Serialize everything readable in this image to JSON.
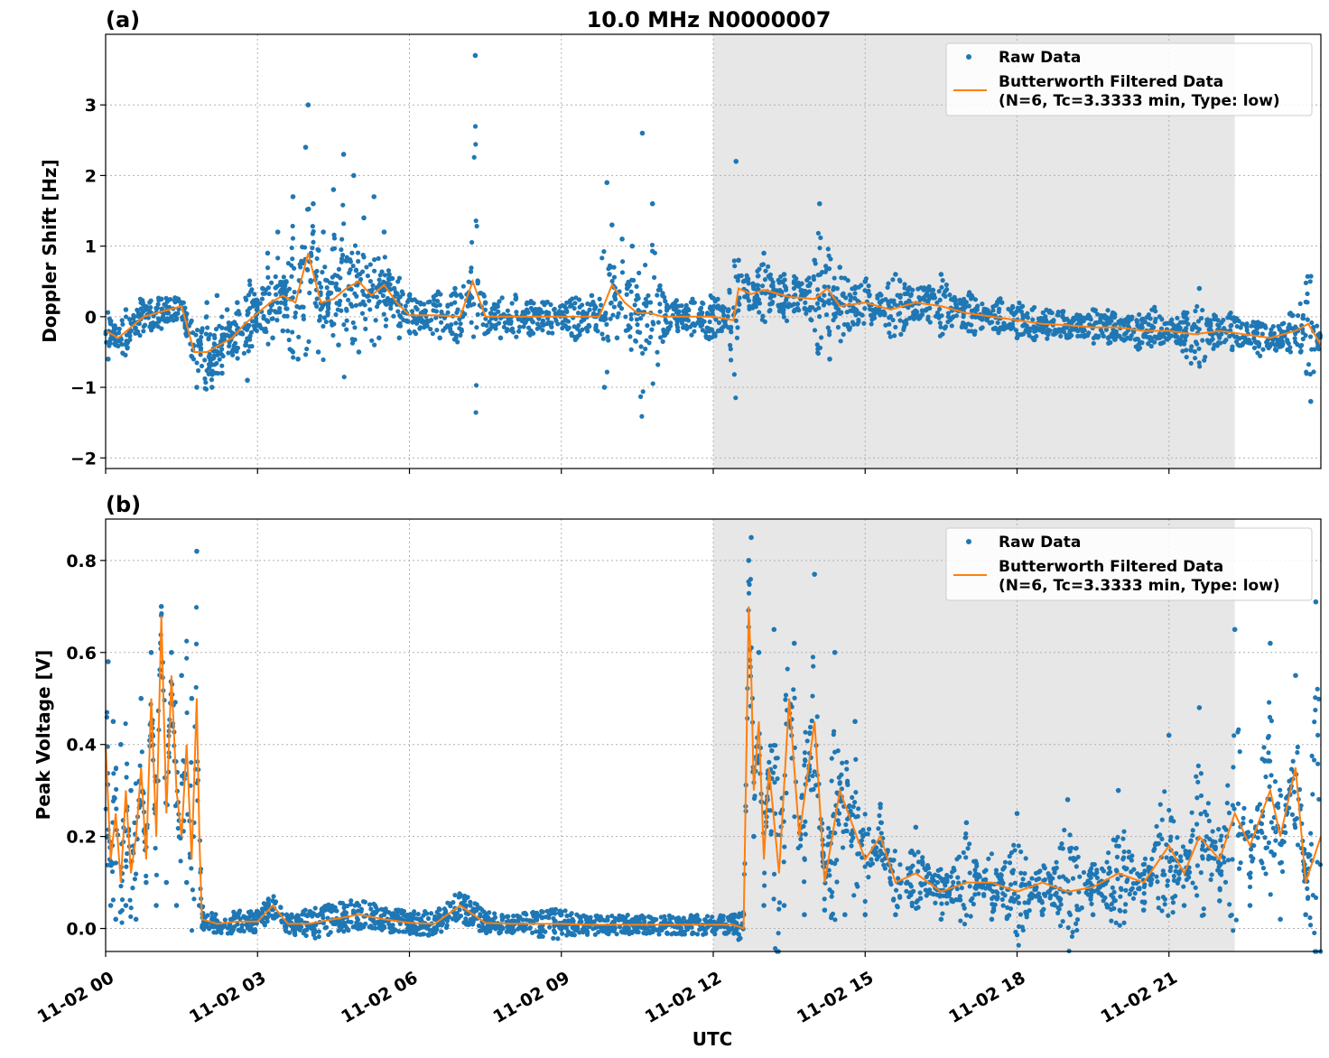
{
  "title": "10.0 MHz N0000007",
  "xlabel": "UTC",
  "colors": {
    "raw": "#1f77b4",
    "filtered": "#ff7f0e",
    "shade": "#e7e7e7",
    "grid": "#b0b0b0"
  },
  "x_ticks": [
    "11-02 00",
    "11-02 03",
    "11-02 06",
    "11-02 09",
    "11-02 12",
    "11-02 15",
    "11-02 18",
    "11-02 21"
  ],
  "x_tick_hours": [
    0,
    3,
    6,
    9,
    12,
    15,
    18,
    21
  ],
  "x_range_hours": [
    0,
    24
  ],
  "shaded_region_hours": [
    12,
    22.3
  ],
  "legend": {
    "raw": "Raw Data",
    "filtered_line1": "Butterworth Filtered Data",
    "filtered_line2": "(N=6, Tc=3.3333 min, Type: low)"
  },
  "chart_data": [
    {
      "panel": "(a)",
      "type": "scatter",
      "ylabel": "Doppler Shift [Hz]",
      "ylim": [
        -2.15,
        4.0
      ],
      "y_ticks": [
        -2,
        -1,
        0,
        1,
        2,
        3
      ],
      "y_tick_labels": [
        "−2",
        "−1",
        "0",
        "1",
        "2",
        "3"
      ],
      "series": [
        {
          "name": "Butterworth Filtered Data",
          "type": "line",
          "x_hours": [
            0,
            0.25,
            0.5,
            0.75,
            1.0,
            1.25,
            1.5,
            1.75,
            2.0,
            2.25,
            2.5,
            2.75,
            3.0,
            3.25,
            3.5,
            3.75,
            4.0,
            4.25,
            4.5,
            4.75,
            5.0,
            5.25,
            5.5,
            5.75,
            6.0,
            6.5,
            7.0,
            7.25,
            7.5,
            8.0,
            8.5,
            9.0,
            9.5,
            9.75,
            10.0,
            10.25,
            10.5,
            10.75,
            11.0,
            11.5,
            12.0,
            12.4,
            12.5,
            12.75,
            13.0,
            13.5,
            14.0,
            14.25,
            14.5,
            15.0,
            15.5,
            16.0,
            16.5,
            17.0,
            17.5,
            18.0,
            18.5,
            19.0,
            19.5,
            20.0,
            20.5,
            21.0,
            21.5,
            22.0,
            22.5,
            23.0,
            23.5,
            23.75,
            24.0
          ],
          "values": [
            -0.2,
            -0.3,
            -0.15,
            0.0,
            0.05,
            0.1,
            0.15,
            -0.5,
            -0.5,
            -0.4,
            -0.3,
            -0.1,
            0.05,
            0.2,
            0.3,
            0.2,
            0.9,
            0.2,
            0.25,
            0.4,
            0.5,
            0.3,
            0.45,
            0.2,
            0.02,
            0.02,
            0.0,
            0.5,
            0.0,
            0.0,
            0.0,
            0.0,
            0.0,
            0.0,
            0.45,
            0.2,
            0.05,
            0.05,
            0.0,
            0.0,
            0.0,
            -0.05,
            0.4,
            0.32,
            0.38,
            0.28,
            0.25,
            0.4,
            0.15,
            0.2,
            0.1,
            0.2,
            0.15,
            0.05,
            0.0,
            -0.05,
            -0.1,
            -0.12,
            -0.15,
            -0.15,
            -0.2,
            -0.2,
            -0.25,
            -0.2,
            -0.25,
            -0.3,
            -0.2,
            -0.1,
            -0.4
          ]
        },
        {
          "name": "Raw Data",
          "type": "scatter",
          "x_hours": [
            0.05,
            0.1,
            0.2,
            0.4,
            0.5,
            0.7,
            0.8,
            0.9,
            1.1,
            1.3,
            1.5,
            1.8,
            1.9,
            2.0,
            2.1,
            2.2,
            2.3,
            2.4,
            2.5,
            2.6,
            2.8,
            3.1,
            3.2,
            3.3,
            3.4,
            3.5,
            3.7,
            3.8,
            3.95,
            4.0,
            4.05,
            4.1,
            4.2,
            4.3,
            4.4,
            4.5,
            4.6,
            4.7,
            4.8,
            4.9,
            5.0,
            5.1,
            5.2,
            5.3,
            5.4,
            5.5,
            5.6,
            5.7,
            5.8,
            6.0,
            6.3,
            6.6,
            6.9,
            7.2,
            7.3,
            7.35,
            7.5,
            7.8,
            8.1,
            8.4,
            8.7,
            9.0,
            9.3,
            9.6,
            9.85,
            9.9,
            9.95,
            10.0,
            10.1,
            10.2,
            10.3,
            10.4,
            10.5,
            10.6,
            10.7,
            10.8,
            11.0,
            11.3,
            11.6,
            11.9,
            12.1,
            12.3,
            12.45,
            12.5,
            12.6,
            12.8,
            13.0,
            13.2,
            13.4,
            13.6,
            13.8,
            14.0,
            14.1,
            14.2,
            14.3,
            14.5,
            14.8,
            15.0,
            15.3,
            15.6,
            15.9,
            16.2,
            16.5,
            16.8,
            17.1,
            17.4,
            17.7,
            18.0,
            18.3,
            18.6,
            18.9,
            19.2,
            19.5,
            19.8,
            20.1,
            20.4,
            20.7,
            21.0,
            21.3,
            21.6,
            21.9,
            22.2,
            22.5,
            22.8,
            23.1,
            23.4,
            23.6,
            23.8,
            23.95
          ],
          "values": [
            -0.6,
            -0.1,
            -0.4,
            0.1,
            -0.2,
            0.2,
            0.1,
            -0.1,
            0.25,
            0.0,
            0.2,
            -1.0,
            -0.2,
            0.2,
            -1.0,
            0.3,
            -0.8,
            0.1,
            -0.5,
            0.2,
            -0.9,
            0.4,
            0.9,
            -0.3,
            1.2,
            -0.2,
            1.7,
            -0.6,
            2.4,
            3.0,
            0.5,
            1.6,
            -0.5,
            1.2,
            0.2,
            1.8,
            -0.4,
            2.3,
            0.4,
            2.0,
            -0.5,
            1.4,
            0.3,
            1.7,
            -0.3,
            1.2,
            0.6,
            0.4,
            -0.3,
            0.3,
            0.05,
            -0.3,
            0.4,
            0.3,
            3.7,
            0.5,
            0.2,
            -0.3,
            0.25,
            -0.2,
            0.2,
            0.05,
            -0.3,
            0.3,
            -1.0,
            1.9,
            0.6,
            1.3,
            -0.3,
            1.1,
            0.4,
            1.0,
            0.3,
            2.6,
            0.2,
            1.6,
            0.3,
            -0.2,
            0.2,
            -0.3,
            -0.2,
            0.1,
            2.2,
            0.8,
            0.5,
            0.4,
            0.9,
            0.3,
            0.6,
            0.5,
            0.3,
            0.8,
            1.6,
            0.2,
            -0.6,
            0.7,
            0.4,
            0.5,
            0.2,
            0.6,
            0.3,
            0.3,
            0.6,
            0.1,
            0.3,
            0.0,
            0.2,
            -0.3,
            0.1,
            -0.2,
            0.0,
            -0.2,
            0.1,
            -0.3,
            -0.1,
            -0.4,
            0.1,
            -0.3,
            0.0,
            0.4,
            -0.4,
            0.0,
            -0.3,
            -0.1,
            -0.4,
            0.05,
            -0.5,
            -1.2,
            -0.3
          ]
        }
      ]
    },
    {
      "panel": "(b)",
      "type": "scatter",
      "ylabel": "Peak Voltage [V]",
      "ylim": [
        -0.05,
        0.89
      ],
      "y_ticks": [
        0.0,
        0.2,
        0.4,
        0.6,
        0.8
      ],
      "y_tick_labels": [
        "0.0",
        "0.2",
        "0.4",
        "0.6",
        "0.8"
      ],
      "series": [
        {
          "name": "Butterworth Filtered Data",
          "type": "line",
          "x_hours": [
            0,
            0.1,
            0.2,
            0.3,
            0.4,
            0.5,
            0.6,
            0.7,
            0.8,
            0.9,
            1.0,
            1.1,
            1.2,
            1.3,
            1.4,
            1.5,
            1.6,
            1.7,
            1.8,
            1.85,
            1.9,
            2.2,
            2.6,
            3.0,
            3.3,
            3.6,
            4.0,
            4.5,
            5.0,
            5.5,
            6.0,
            6.5,
            7.0,
            7.5,
            8.0,
            8.5,
            9.0,
            9.5,
            10.0,
            10.5,
            11.0,
            11.5,
            12.0,
            12.4,
            12.6,
            12.7,
            12.75,
            12.8,
            12.9,
            13.0,
            13.1,
            13.3,
            13.5,
            13.7,
            14.0,
            14.2,
            14.5,
            15.0,
            15.3,
            15.6,
            16.0,
            16.5,
            17.0,
            17.5,
            18.0,
            18.5,
            19.0,
            19.5,
            20.0,
            20.5,
            21.0,
            21.3,
            21.6,
            22.0,
            22.3,
            22.6,
            23.0,
            23.2,
            23.5,
            23.7,
            24.0
          ],
          "values": [
            0.4,
            0.15,
            0.25,
            0.1,
            0.3,
            0.12,
            0.2,
            0.35,
            0.15,
            0.5,
            0.2,
            0.68,
            0.25,
            0.55,
            0.3,
            0.2,
            0.4,
            0.15,
            0.5,
            0.2,
            0.02,
            0.01,
            0.015,
            0.015,
            0.05,
            0.01,
            0.01,
            0.02,
            0.03,
            0.02,
            0.012,
            0.01,
            0.05,
            0.012,
            0.01,
            0.01,
            0.01,
            0.008,
            0.008,
            0.008,
            0.008,
            0.008,
            0.008,
            0.008,
            0.0,
            0.7,
            0.55,
            0.3,
            0.45,
            0.15,
            0.35,
            0.12,
            0.5,
            0.2,
            0.45,
            0.1,
            0.3,
            0.15,
            0.2,
            0.1,
            0.12,
            0.08,
            0.1,
            0.1,
            0.08,
            0.1,
            0.08,
            0.09,
            0.12,
            0.1,
            0.18,
            0.12,
            0.2,
            0.15,
            0.25,
            0.18,
            0.3,
            0.2,
            0.35,
            0.1,
            0.2
          ]
        },
        {
          "name": "Raw Data",
          "type": "scatter",
          "x_hours": [
            0.05,
            0.1,
            0.15,
            0.2,
            0.3,
            0.4,
            0.5,
            0.6,
            0.7,
            0.8,
            0.9,
            1.0,
            1.1,
            1.2,
            1.3,
            1.4,
            1.5,
            1.6,
            1.7,
            1.8,
            1.85,
            2.0,
            2.5,
            3.0,
            3.3,
            3.6,
            4.0,
            4.5,
            5.0,
            5.5,
            6.0,
            6.5,
            7.0,
            7.5,
            8.0,
            8.5,
            9.0,
            9.5,
            10.0,
            10.5,
            11.0,
            11.5,
            12.0,
            12.4,
            12.6,
            12.7,
            12.75,
            12.8,
            12.9,
            13.0,
            13.2,
            13.4,
            13.6,
            13.8,
            14.0,
            14.2,
            14.4,
            14.6,
            14.8,
            15.0,
            15.3,
            15.6,
            16.0,
            16.5,
            17.0,
            17.5,
            18.0,
            18.5,
            19.0,
            19.5,
            20.0,
            20.5,
            21.0,
            21.3,
            21.6,
            22.0,
            22.3,
            22.6,
            23.0,
            23.2,
            23.5,
            23.7,
            23.9
          ],
          "values": [
            0.58,
            0.05,
            0.45,
            0.02,
            0.4,
            0.05,
            0.3,
            0.02,
            0.5,
            0.1,
            0.6,
            0.05,
            0.7,
            0.1,
            0.6,
            0.05,
            0.55,
            0.1,
            0.5,
            0.82,
            0.05,
            0.01,
            0.02,
            0.02,
            0.06,
            0.01,
            0.03,
            0.04,
            0.05,
            0.03,
            0.02,
            0.02,
            0.07,
            0.02,
            0.01,
            0.02,
            0.03,
            0.01,
            0.01,
            0.01,
            0.01,
            0.01,
            0.01,
            0.01,
            0.03,
            0.8,
            0.85,
            0.2,
            0.6,
            0.05,
            0.65,
            0.05,
            0.62,
            0.03,
            0.77,
            0.04,
            0.6,
            0.03,
            0.45,
            0.03,
            0.27,
            0.03,
            0.22,
            0.02,
            0.23,
            0.02,
            0.25,
            0.03,
            0.28,
            0.03,
            0.3,
            0.04,
            0.42,
            0.05,
            0.48,
            0.06,
            0.65,
            0.05,
            0.62,
            0.02,
            0.55,
            0.03,
            0.71
          ]
        }
      ]
    }
  ]
}
